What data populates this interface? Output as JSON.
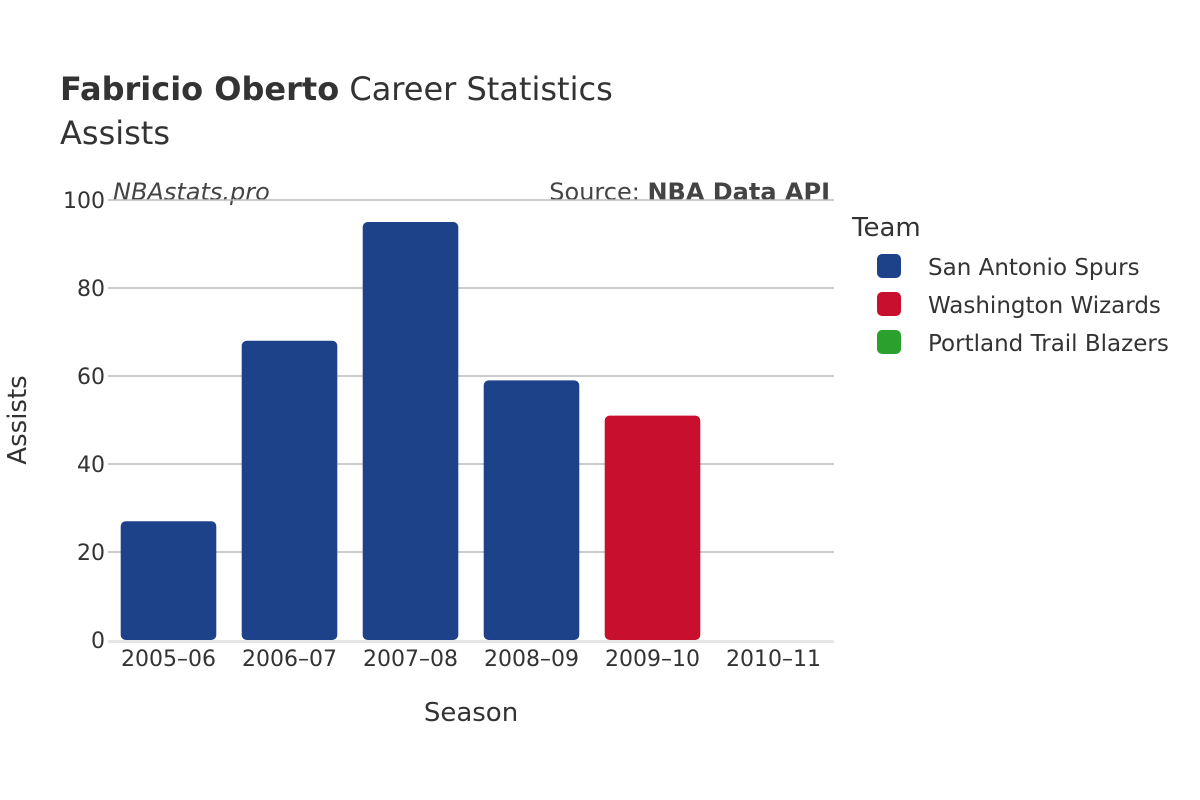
{
  "header": {
    "title_bold": "Fabricio Oberto",
    "title_rest": " Career Statistics",
    "subtitle": "Assists"
  },
  "watermark": "NBAstats.pro",
  "source": {
    "prefix": "Source: ",
    "name": "NBA Data API"
  },
  "legend": {
    "title": "Team",
    "items": [
      {
        "label": "San Antonio Spurs",
        "color": "#1d428a"
      },
      {
        "label": "Washington Wizards",
        "color": "#c8102e"
      },
      {
        "label": "Portland Trail Blazers",
        "color": "#2ca02c"
      }
    ]
  },
  "chart_data": {
    "type": "bar",
    "categories": [
      "2005–06",
      "2006–07",
      "2007–08",
      "2008–09",
      "2009–10",
      "2010–11"
    ],
    "series": [
      {
        "name": "San Antonio Spurs",
        "color": "#1d428a",
        "values": [
          27,
          68,
          95,
          59,
          null,
          null
        ]
      },
      {
        "name": "Washington Wizards",
        "color": "#c8102e",
        "values": [
          null,
          null,
          null,
          null,
          51,
          null
        ]
      },
      {
        "name": "Portland Trail Blazers",
        "color": "#2ca02c",
        "values": [
          null,
          null,
          null,
          null,
          null,
          0
        ]
      }
    ],
    "xlabel": "Season",
    "ylabel": "Assists",
    "ylim": [
      0,
      100
    ],
    "yticks": [
      "0",
      "20",
      "40",
      "60",
      "80",
      "100"
    ],
    "grid": true,
    "legend_position": "right"
  }
}
